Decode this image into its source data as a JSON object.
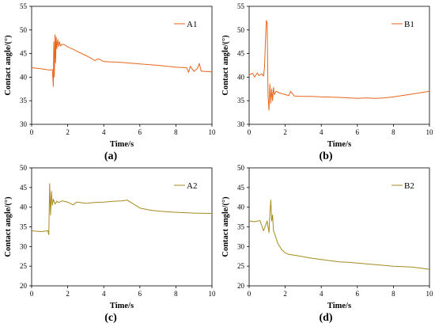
{
  "chart_data": [
    {
      "panel_label": "(a)",
      "type": "line",
      "xlabel": "Time/s",
      "ylabel": "Contact angle/(°)",
      "xlim": [
        0,
        10
      ],
      "ylim": [
        30,
        55
      ],
      "xticks": [
        0,
        2,
        4,
        6,
        8,
        10
      ],
      "yticks": [
        30,
        35,
        40,
        45,
        50,
        55
      ],
      "grid": false,
      "legend": "top-right",
      "series": [
        {
          "name": "A1",
          "color": "#e8661a",
          "x": [
            0,
            0.5,
            1.0,
            1.15,
            1.2,
            1.23,
            1.26,
            1.3,
            1.33,
            1.36,
            1.4,
            1.45,
            1.5,
            1.55,
            1.6,
            1.7,
            1.85,
            2.0,
            2.3,
            2.6,
            3.0,
            3.3,
            3.5,
            3.7,
            4.0,
            5.0,
            6.0,
            7.0,
            8.0,
            8.6,
            8.7,
            8.8,
            9.0,
            9.2,
            9.3,
            9.4,
            9.6,
            10.0
          ],
          "y": [
            42.0,
            41.8,
            41.5,
            41.6,
            38.0,
            47.5,
            40.0,
            49.0,
            43.0,
            48.5,
            46.0,
            48.0,
            46.5,
            47.5,
            46.6,
            47.0,
            46.8,
            46.4,
            45.9,
            45.3,
            44.6,
            44.0,
            43.5,
            43.9,
            43.3,
            43.1,
            42.8,
            42.5,
            42.1,
            42.0,
            41.0,
            42.3,
            41.2,
            41.9,
            42.9,
            41.3,
            41.2,
            41.1
          ]
        }
      ]
    },
    {
      "panel_label": "(b)",
      "type": "line",
      "xlabel": "Time/s",
      "ylabel": "Contact angle/(°)",
      "xlim": [
        0,
        10
      ],
      "ylim": [
        30,
        55
      ],
      "xticks": [
        0,
        2,
        4,
        6,
        8,
        10
      ],
      "yticks": [
        30,
        35,
        40,
        45,
        50,
        55
      ],
      "grid": false,
      "legend": "top-right",
      "series": [
        {
          "name": "B1",
          "color": "#e8661a",
          "x": [
            0,
            0.2,
            0.3,
            0.45,
            0.55,
            0.7,
            0.8,
            0.85,
            0.9,
            0.95,
            1.0,
            1.05,
            1.1,
            1.15,
            1.2,
            1.25,
            1.3,
            1.35,
            1.4,
            1.5,
            1.6,
            1.8,
            2.0,
            2.2,
            2.3,
            2.5,
            3.0,
            3.5,
            4.0,
            5.0,
            6.0,
            6.5,
            7.0,
            7.5,
            8.0,
            8.5,
            9.0,
            9.5,
            10.0
          ],
          "y": [
            40.5,
            40.8,
            40.0,
            40.9,
            40.3,
            40.7,
            40.2,
            42.0,
            47.0,
            52.0,
            51.5,
            36.0,
            33.0,
            38.5,
            34.5,
            37.5,
            35.0,
            37.8,
            36.3,
            37.0,
            36.8,
            36.5,
            36.3,
            36.1,
            37.0,
            36.0,
            35.9,
            35.9,
            35.8,
            35.7,
            35.5,
            35.6,
            35.5,
            35.6,
            35.8,
            36.1,
            36.4,
            36.7,
            37.0
          ]
        }
      ]
    },
    {
      "panel_label": "(c)",
      "type": "line",
      "xlabel": "Time/s",
      "ylabel": "Contact angle/(°)",
      "xlim": [
        0,
        10
      ],
      "ylim": [
        20,
        50
      ],
      "xticks": [
        0,
        2,
        4,
        6,
        8,
        10
      ],
      "yticks": [
        20,
        25,
        30,
        35,
        40,
        45,
        50
      ],
      "grid": false,
      "legend": "top-right",
      "series": [
        {
          "name": "A2",
          "color": "#a68a1e",
          "x": [
            0,
            0.5,
            0.9,
            0.95,
            1.0,
            1.05,
            1.1,
            1.15,
            1.2,
            1.3,
            1.4,
            1.5,
            1.7,
            2.0,
            2.3,
            2.5,
            3.0,
            3.5,
            4.0,
            4.5,
            5.0,
            5.3,
            5.5,
            5.8,
            6.0,
            6.5,
            7.0,
            8.0,
            9.0,
            10.0
          ],
          "y": [
            34.0,
            33.8,
            34.0,
            33.0,
            46.0,
            38.0,
            44.0,
            40.5,
            42.0,
            40.8,
            41.5,
            41.2,
            41.6,
            41.3,
            40.6,
            41.3,
            41.0,
            41.2,
            41.3,
            41.5,
            41.6,
            41.8,
            41.2,
            40.4,
            39.8,
            39.3,
            39.0,
            38.7,
            38.5,
            38.4
          ]
        }
      ]
    },
    {
      "panel_label": "(d)",
      "type": "line",
      "xlabel": "Time/s",
      "ylabel": "Contact angle/(°)",
      "xlim": [
        0,
        10
      ],
      "ylim": [
        20,
        50
      ],
      "xticks": [
        0,
        2,
        4,
        6,
        8,
        10
      ],
      "yticks": [
        20,
        25,
        30,
        35,
        40,
        45,
        50
      ],
      "grid": false,
      "legend": "top-right",
      "series": [
        {
          "name": "B2",
          "color": "#a68a1e",
          "x": [
            0,
            0.3,
            0.6,
            0.8,
            1.0,
            1.1,
            1.15,
            1.2,
            1.25,
            1.3,
            1.35,
            1.4,
            1.5,
            1.6,
            1.7,
            1.8,
            2.0,
            2.2,
            2.5,
            3.0,
            3.5,
            4.0,
            4.5,
            5.0,
            5.5,
            6.0,
            6.5,
            7.0,
            7.5,
            8.0,
            8.5,
            9.0,
            9.5,
            10.0
          ],
          "y": [
            36.5,
            36.3,
            36.6,
            34.0,
            36.5,
            33.5,
            38.0,
            41.8,
            36.5,
            38.0,
            34.0,
            33.5,
            32.0,
            30.7,
            30.0,
            29.2,
            28.4,
            28.0,
            27.8,
            27.4,
            27.0,
            26.7,
            26.4,
            26.1,
            26.0,
            25.8,
            25.6,
            25.4,
            25.2,
            25.0,
            24.9,
            24.8,
            24.5,
            24.2
          ]
        }
      ]
    }
  ]
}
